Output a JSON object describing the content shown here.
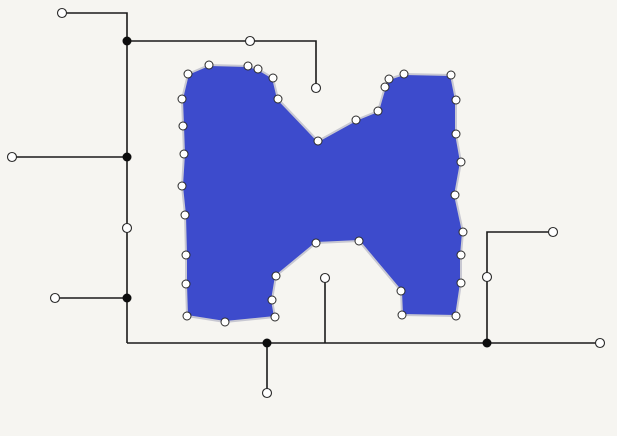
{
  "colors": {
    "background": "#f6f5f1",
    "shape_fill": "#3d4bcc",
    "shape_outline": "#c8c8d2",
    "wire": "#1a1a1a"
  },
  "icons": {
    "endpoint": "open-circle-node",
    "junction": "solid-black-node",
    "control_point": "open-circle-vertex"
  }
}
